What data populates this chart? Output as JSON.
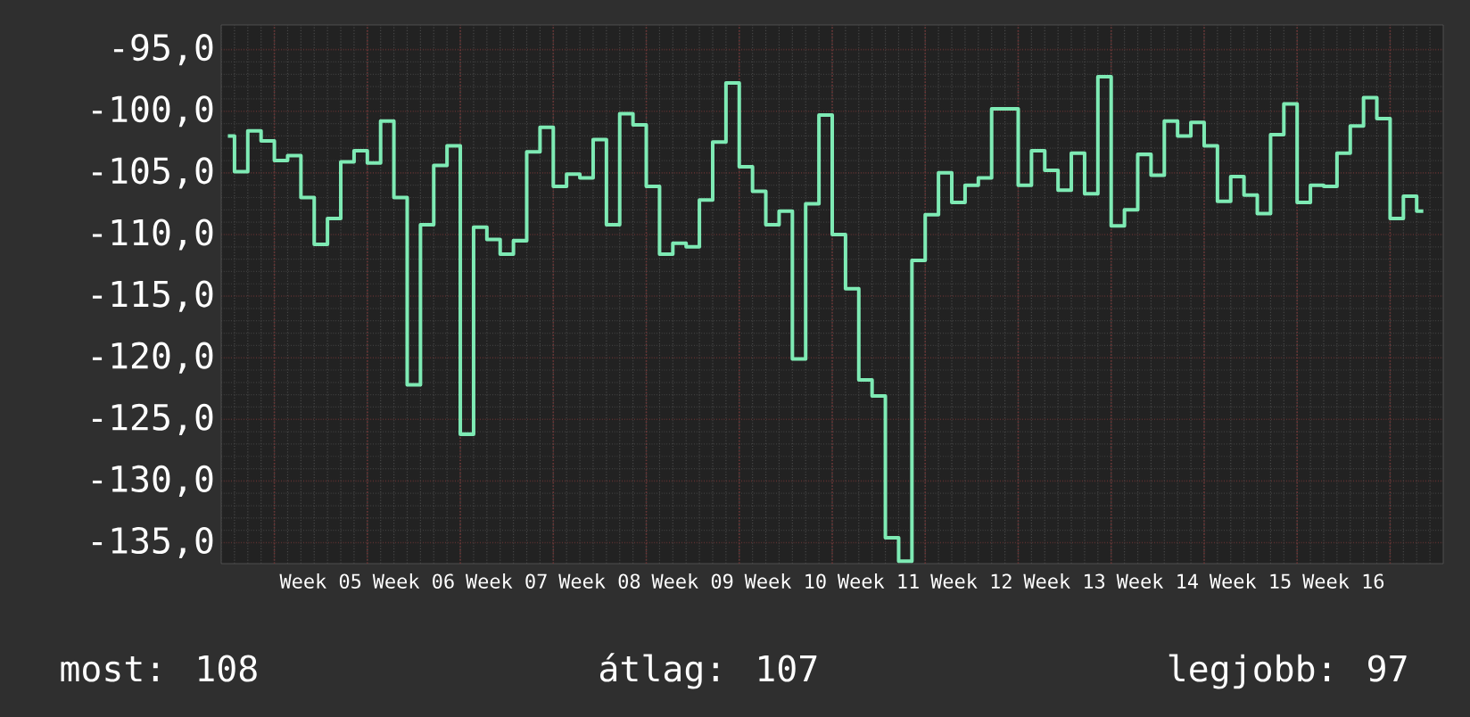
{
  "chart_data": {
    "type": "step",
    "categories": [
      null,
      null,
      null,
      null,
      null,
      null,
      null,
      "Week 05",
      null,
      null,
      null,
      null,
      null,
      null,
      "Week 06",
      null,
      null,
      null,
      null,
      null,
      null,
      "Week 07",
      null,
      null,
      null,
      null,
      null,
      null,
      "Week 08",
      null,
      null,
      null,
      null,
      null,
      null,
      "Week 09",
      null,
      null,
      null,
      null,
      null,
      null,
      "Week 10",
      null,
      null,
      null,
      null,
      null,
      null,
      "Week 11",
      null,
      null,
      null,
      null,
      null,
      null,
      "Week 12",
      null,
      null,
      null,
      null,
      null,
      null,
      "Week 13",
      null,
      null,
      null,
      null,
      null,
      null,
      "Week 14",
      null,
      null,
      null,
      null,
      null,
      null,
      "Week 15",
      null,
      null,
      null,
      null,
      null,
      null,
      "Week 16",
      null,
      null,
      null,
      null,
      null,
      null
    ],
    "values": [
      -102.0,
      -104.9,
      -101.6,
      -102.4,
      -104.0,
      -103.6,
      -107.0,
      -110.8,
      -108.7,
      -104.1,
      -103.2,
      -104.2,
      -100.8,
      -107.0,
      -122.2,
      -109.2,
      -104.4,
      -102.8,
      -126.2,
      -109.4,
      -110.4,
      -111.6,
      -110.5,
      -103.3,
      -101.3,
      -106.1,
      -105.1,
      -105.4,
      -102.3,
      -109.2,
      -100.2,
      -101.1,
      -106.1,
      -111.6,
      -110.7,
      -111.0,
      -107.2,
      -102.5,
      -97.7,
      -104.5,
      -106.5,
      -109.2,
      -108.1,
      -120.1,
      -107.5,
      -100.3,
      -110.0,
      -114.4,
      -121.8,
      -123.1,
      -134.6,
      -136.5,
      -112.1,
      -108.4,
      -105.0,
      -107.4,
      -106.0,
      -105.4,
      -99.8,
      -99.8,
      -106.0,
      -103.2,
      -104.8,
      -106.4,
      -103.4,
      -106.7,
      -97.2,
      -109.3,
      -108.0,
      -103.5,
      -105.2,
      -100.8,
      -102.0,
      -100.9,
      -102.8,
      -107.3,
      -105.3,
      -106.8,
      -108.3,
      -101.9,
      -99.4,
      -107.4,
      -106.0,
      -106.1,
      -103.4,
      -101.2,
      -98.9,
      -100.6,
      -108.7,
      -106.9,
      -108.1
    ],
    "color": "#7eeab4",
    "ylim": [
      -136.7,
      -93.0
    ],
    "yticks": [
      {
        "value": -95,
        "label": "-95,0"
      },
      {
        "value": -100,
        "label": "-100,0"
      },
      {
        "value": -105,
        "label": "-105,0"
      },
      {
        "value": -110,
        "label": "-110,0"
      },
      {
        "value": -115,
        "label": "-115,0"
      },
      {
        "value": -120,
        "label": "-120,0"
      },
      {
        "value": -125,
        "label": "-125,0"
      },
      {
        "value": -130,
        "label": "-130,0"
      },
      {
        "value": -135,
        "label": "-135,0"
      }
    ],
    "grid": true,
    "annotations": [
      "most: 108",
      "átlag: 107",
      "legjobb: 97"
    ]
  }
}
